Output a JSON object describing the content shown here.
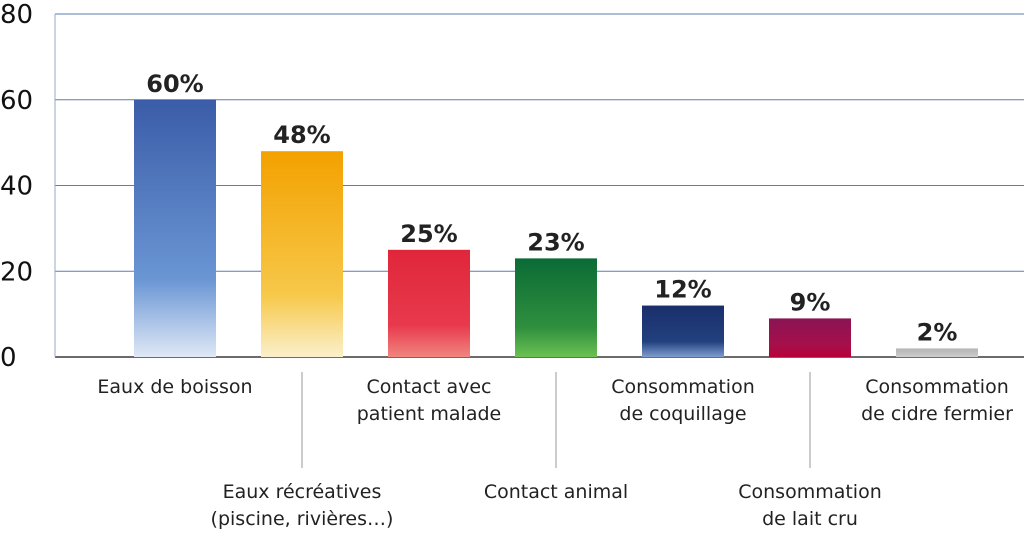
{
  "chart_data": {
    "type": "bar",
    "title": "",
    "xlabel": "",
    "ylabel": "",
    "ylim": [
      0,
      80
    ],
    "yticks": [
      0,
      20,
      40,
      60,
      80
    ],
    "grid": true,
    "categories": [
      [
        "Eaux de boisson"
      ],
      [
        "Eaux récréatives",
        "(piscine, rivières…)"
      ],
      [
        "Contact avec",
        "patient malade"
      ],
      [
        "Contact animal"
      ],
      [
        "Consommation",
        "de coquillage"
      ],
      [
        "Consommation",
        "de lait cru"
      ],
      [
        "Consommation",
        "de cidre fermier"
      ]
    ],
    "values": [
      60,
      48,
      25,
      23,
      12,
      9,
      2
    ],
    "data_labels": [
      "60%",
      "48%",
      "25%",
      "23%",
      "12%",
      "9%",
      "2%"
    ],
    "label_rows": [
      "upper",
      "lower",
      "upper",
      "lower",
      "upper",
      "lower",
      "upper"
    ],
    "colors": [
      [
        "#3b5ca8",
        "#6a96d4",
        "#dfe8f6"
      ],
      [
        "#f3a100",
        "#f7c84a",
        "#fbf0cc"
      ],
      [
        "#e0263a",
        "#e8394c",
        "#f0857f"
      ],
      [
        "#0a6b36",
        "#2f8f3e",
        "#6cc152"
      ],
      [
        "#1a2f6b",
        "#22407e",
        "#7f9ccf"
      ],
      [
        "#8a1454",
        "#a60f4a",
        "#b8003a"
      ],
      [
        "#b5b5b5",
        "#c4c4c4",
        "#cfcfcf"
      ]
    ]
  }
}
